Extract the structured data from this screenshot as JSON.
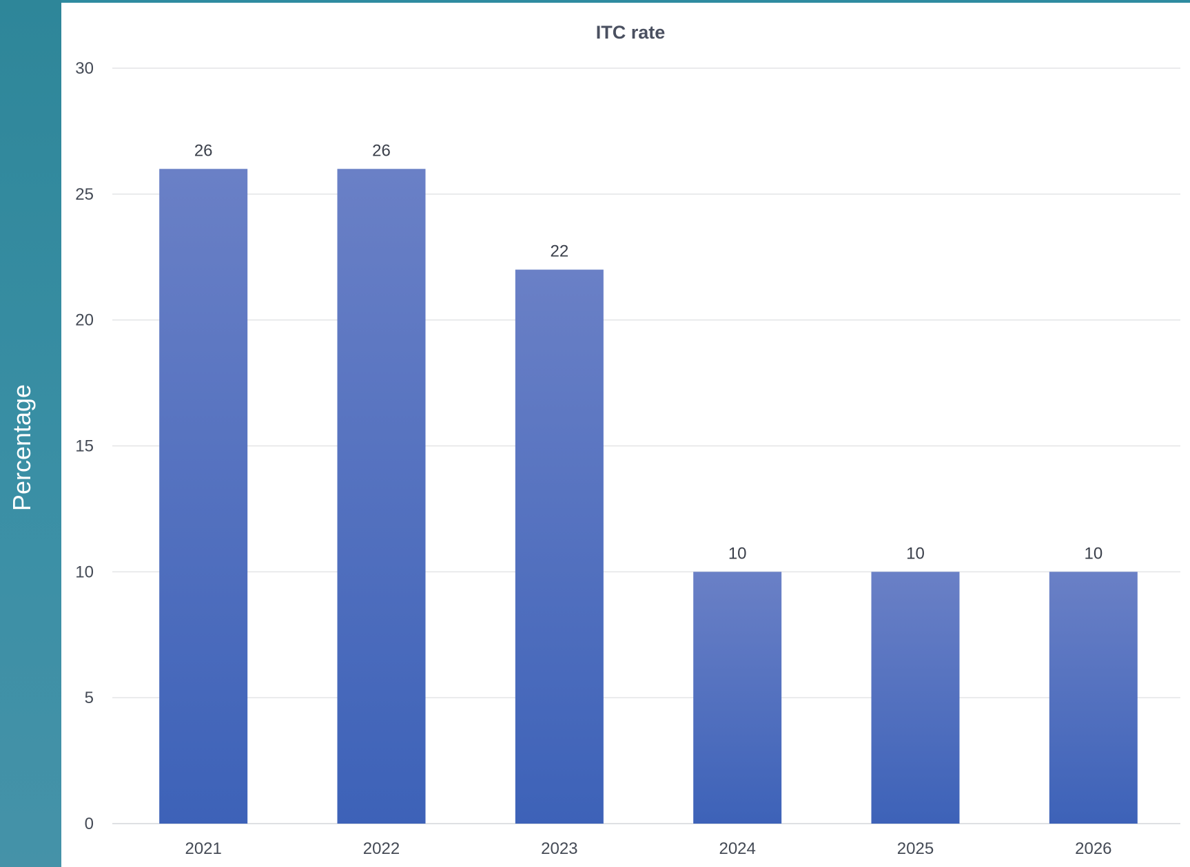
{
  "chart_data": {
    "type": "bar",
    "title": "ITC rate",
    "ylabel": "Percentage",
    "xlabel": "",
    "categories": [
      "2021",
      "2022",
      "2023",
      "2024",
      "2025",
      "2026"
    ],
    "values": [
      26,
      26,
      22,
      10,
      10,
      10
    ],
    "ylim": [
      0,
      30
    ],
    "yticks": [
      "0",
      "5",
      "10",
      "15",
      "20",
      "25",
      "30"
    ],
    "grid": true,
    "bar_color_top": "#6a80c6",
    "bar_color_bottom": "#3d62b8"
  }
}
